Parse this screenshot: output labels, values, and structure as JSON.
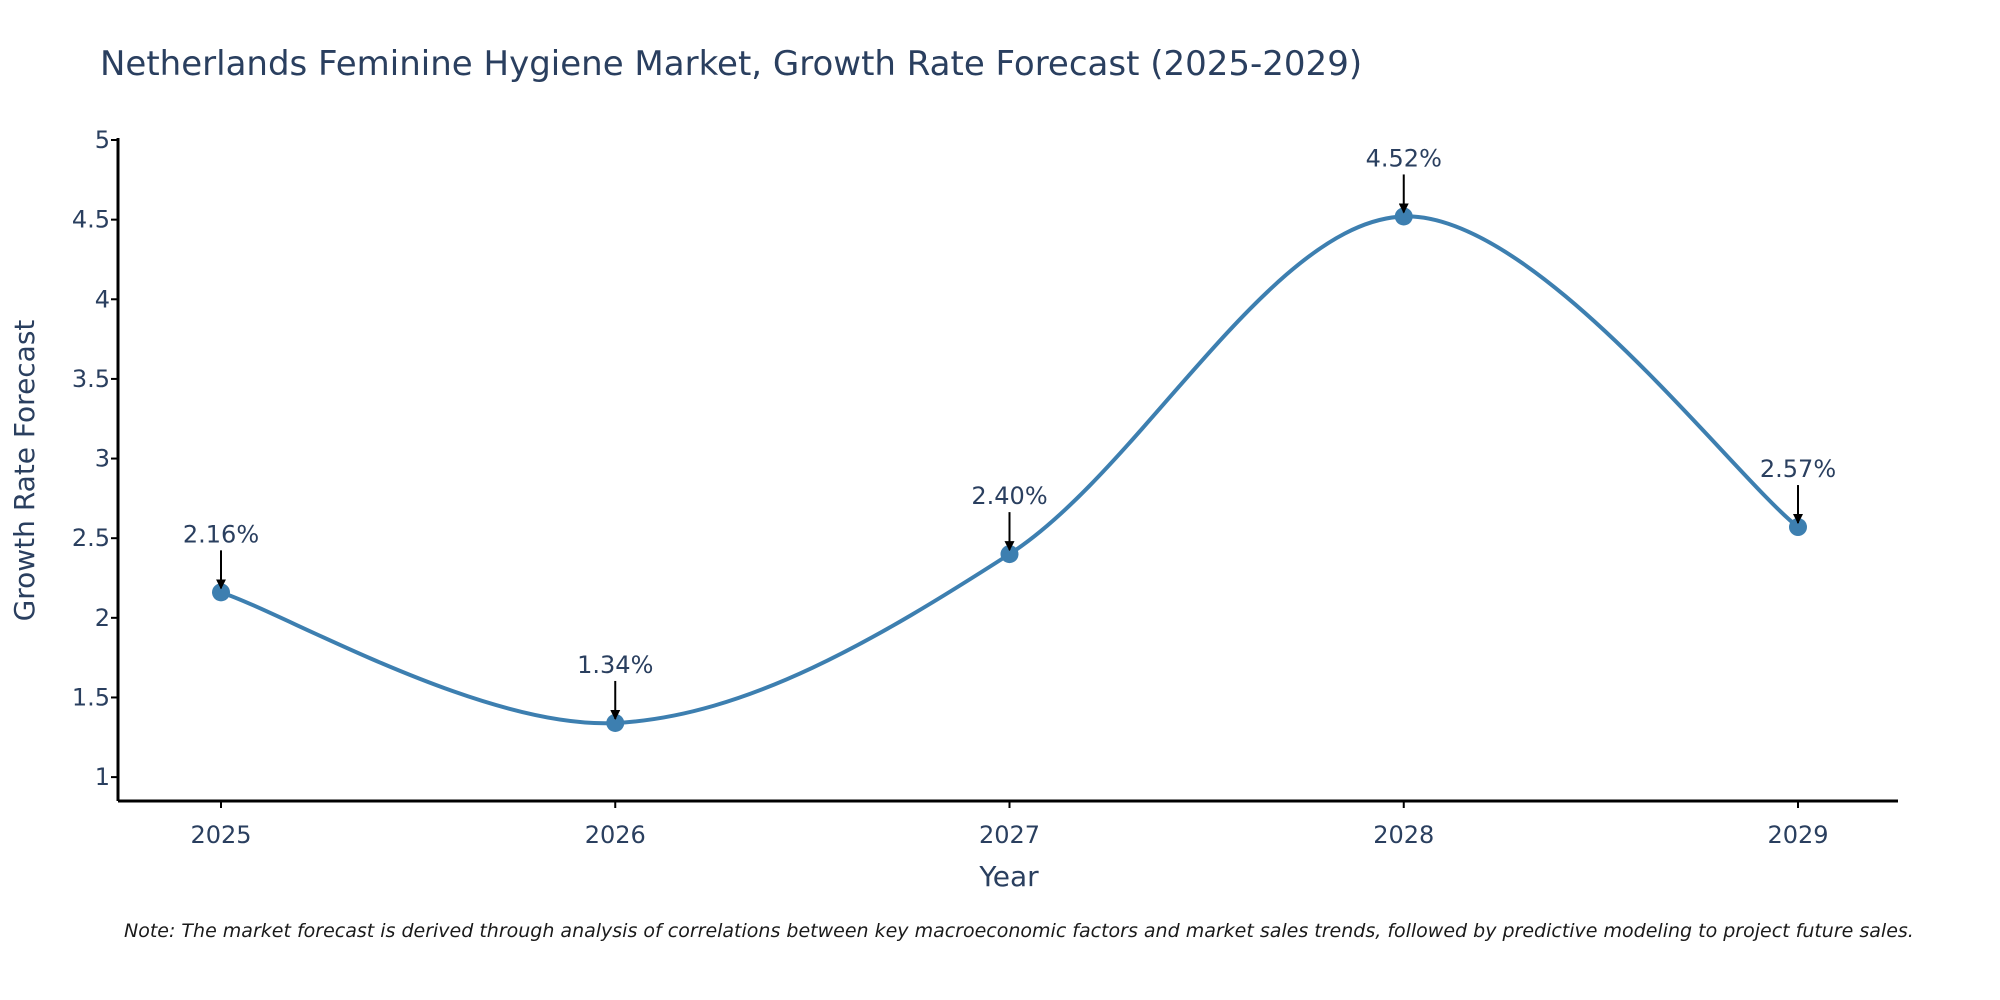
{
  "chart_data": {
    "type": "line",
    "title": "Netherlands Feminine Hygiene Market, Growth Rate Forecast (2025-2029)",
    "xlabel": "Year",
    "ylabel": "Growth Rate Forecast",
    "categories": [
      "2025",
      "2026",
      "2027",
      "2028",
      "2029"
    ],
    "series": [
      {
        "name": "Growth Rate Forecast",
        "values": [
          2.16,
          1.34,
          2.4,
          4.52,
          2.57
        ],
        "color": "#3d7fb0",
        "line_shape": "spline"
      }
    ],
    "data_labels": [
      "2.16%",
      "1.34%",
      "2.40%",
      "4.52%",
      "2.57%"
    ],
    "yticks": [
      "1",
      "1.5",
      "2",
      "2.5",
      "3",
      "3.5",
      "4",
      "4.5",
      "5"
    ],
    "ylim": [
      0.85,
      5
    ],
    "grid": false,
    "legend": "none"
  },
  "footnote": "Note: The market forecast is derived through analysis of correlations between key macroeconomic factors and market sales trends, followed by predictive modeling to project future sales."
}
